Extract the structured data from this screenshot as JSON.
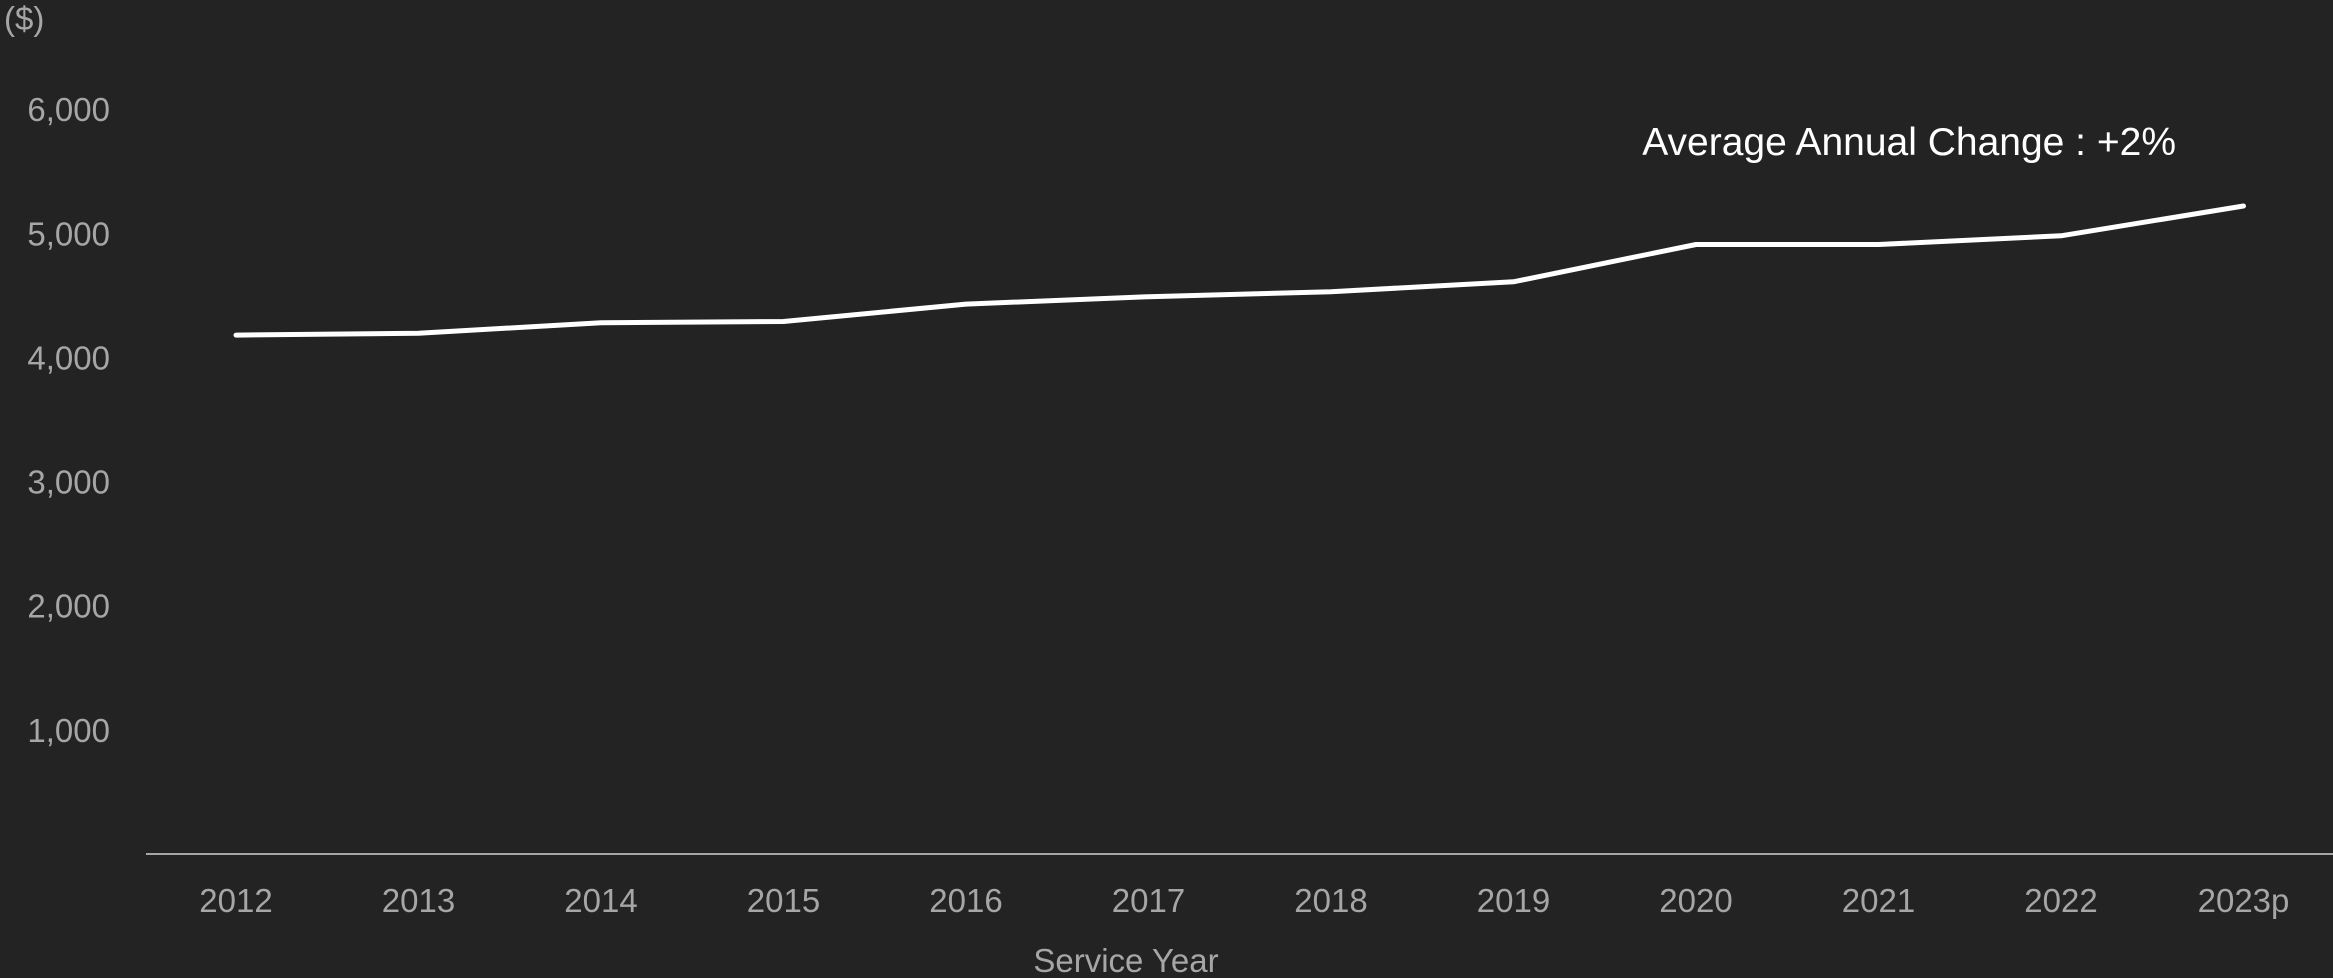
{
  "chart_data": {
    "type": "line",
    "title": "",
    "ylabel": "($)",
    "xlabel": "Service Year",
    "categories": [
      "2012",
      "2013",
      "2014",
      "2015",
      "2016",
      "2017",
      "2018",
      "2019",
      "2020",
      "2021",
      "2022",
      "2023p"
    ],
    "series": [
      {
        "values": [
          4180,
          4195,
          4280,
          4290,
          4430,
          4490,
          4530,
          4610,
          4910,
          4910,
          4980,
          5220
        ]
      }
    ],
    "ylim": [
      0,
      6000
    ],
    "yticks": [
      1000,
      2000,
      3000,
      4000,
      5000,
      6000
    ],
    "ytick_labels": [
      "1,000",
      "2,000",
      "3,000",
      "4,000",
      "5,000",
      "6,000"
    ],
    "grid": false,
    "legend": "none",
    "annotation": "Average Annual Change :  +2%",
    "colors": {
      "background": "#232323",
      "line": "#ffffff",
      "axis": "#a6a6a6",
      "text": "#a6a6a6",
      "annotation": "#ffffff"
    }
  }
}
